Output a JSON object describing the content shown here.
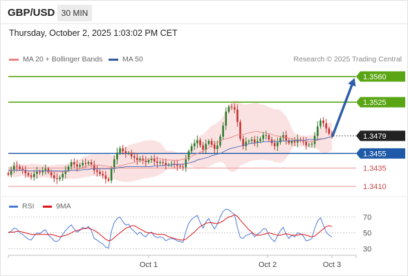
{
  "header": {
    "pair": "GBP/USD",
    "timeframe": "30 MIN"
  },
  "timestamp": "Thursday, October 2, 2025 1:03:02 PM CET",
  "legend": {
    "items": [
      {
        "label": "MA 20 + Bollinger Bands",
        "color": "#f08080"
      },
      {
        "label": "MA 50",
        "color": "#2e5a9c"
      }
    ],
    "copyright": "Research © 2025 Trading Central"
  },
  "rsi_legend": {
    "items": [
      {
        "label": "RSI",
        "color": "#4a78d8"
      },
      {
        "label": "9MA",
        "color": "#dd1111"
      }
    ]
  },
  "colors": {
    "resistance": "#5aa514",
    "support_blue": "#1f5aa8",
    "support_red": "#e88f8f",
    "last_price": "#222222",
    "bull": "#2a7a2a",
    "bear": "#c23030",
    "bands": "#fbe2e2",
    "ma20": "#e58e8e",
    "ma50": "#5572b8",
    "arrow": "#2e5ea8"
  },
  "chart_data": [
    {
      "type": "candlestick",
      "title": "",
      "instrument": "GBP/USD",
      "interval": "30 MIN",
      "ylim": [
        1.3396,
        1.3575
      ],
      "x_ticks": [
        "Oct 1",
        "Oct 2",
        "Oct 3"
      ],
      "levels": [
        {
          "value": 1.356,
          "label": "1.3560",
          "kind": "resistance",
          "color": "#5aa514"
        },
        {
          "value": 1.3525,
          "label": "1.3525",
          "kind": "resistance",
          "color": "#5aa514"
        },
        {
          "value": 1.3479,
          "label": "1.3479",
          "kind": "last",
          "color": "#222222"
        },
        {
          "value": 1.3455,
          "label": "1.3455",
          "kind": "support",
          "color": "#1f5aa8"
        },
        {
          "value": 1.3435,
          "label": "1.3435",
          "kind": "support-minor",
          "color": "#e88f8f"
        },
        {
          "value": 1.341,
          "label": "1.3410",
          "kind": "support-minor",
          "color": "#e88f8f"
        }
      ],
      "close": [
        1.3426,
        1.3433,
        1.3438,
        1.3437,
        1.3434,
        1.3432,
        1.3428,
        1.3425,
        1.3423,
        1.3427,
        1.343,
        1.3429,
        1.3432,
        1.3434,
        1.3429,
        1.3425,
        1.3421,
        1.342,
        1.3422,
        1.3427,
        1.3432,
        1.3437,
        1.3443,
        1.344,
        1.3437,
        1.3439,
        1.3442,
        1.3441,
        1.3443,
        1.344,
        1.3432,
        1.343,
        1.3427,
        1.3425,
        1.342,
        1.3418,
        1.3434,
        1.3447,
        1.3456,
        1.3462,
        1.3458,
        1.3455,
        1.3456,
        1.3451,
        1.3449,
        1.3446,
        1.3448,
        1.3445,
        1.3443,
        1.3446,
        1.3448,
        1.3444,
        1.3442,
        1.3443,
        1.3442,
        1.3439,
        1.344,
        1.3441,
        1.344,
        1.3438,
        1.3437,
        1.3436,
        1.3447,
        1.3458,
        1.3465,
        1.3469,
        1.3473,
        1.3466,
        1.346,
        1.3468,
        1.3472,
        1.3467,
        1.3461,
        1.3466,
        1.3478,
        1.3493,
        1.3512,
        1.3519,
        1.3518,
        1.3515,
        1.3498,
        1.3475,
        1.3465,
        1.3471,
        1.3472,
        1.3474,
        1.347,
        1.3472,
        1.3475,
        1.348,
        1.348,
        1.3474,
        1.3469,
        1.3465,
        1.347,
        1.3476,
        1.348,
        1.3473,
        1.3469,
        1.3472,
        1.347,
        1.3474,
        1.3473,
        1.3471,
        1.3466,
        1.3467,
        1.3468,
        1.3479,
        1.3492,
        1.35,
        1.3496,
        1.3489,
        1.3482,
        1.3479
      ],
      "ma20": [
        1.3431,
        1.3431,
        1.3432,
        1.3432,
        1.3432,
        1.3432,
        1.3432,
        1.3431,
        1.3431,
        1.3431,
        1.3431,
        1.3431,
        1.3431,
        1.3431,
        1.343,
        1.343,
        1.343,
        1.343,
        1.343,
        1.343,
        1.343,
        1.3431,
        1.3432,
        1.3432,
        1.3433,
        1.3434,
        1.3436,
        1.3437,
        1.3438,
        1.3439,
        1.3439,
        1.3439,
        1.3439,
        1.3438,
        1.3438,
        1.3437,
        1.3436,
        1.3436,
        1.3437,
        1.3438,
        1.3439,
        1.344,
        1.3441,
        1.3442,
        1.3443,
        1.3444,
        1.3445,
        1.3446,
        1.3447,
        1.3447,
        1.3448,
        1.3448,
        1.3448,
        1.3448,
        1.3447,
        1.3446,
        1.3446,
        1.3446,
        1.3445,
        1.3445,
        1.3446,
        1.3447,
        1.3448,
        1.3449,
        1.3451,
        1.3453,
        1.3455,
        1.3457,
        1.3458,
        1.346,
        1.3463,
        1.3466,
        1.3468,
        1.347,
        1.3472,
        1.3474,
        1.3475,
        1.3476,
        1.3477,
        1.3479,
        1.348,
        1.3481,
        1.3481,
        1.3482,
        1.3483,
        1.3484,
        1.3485,
        1.3485,
        1.3484,
        1.3484,
        1.3483,
        1.3482,
        1.3481,
        1.3479,
        1.3479,
        1.3478,
        1.3477,
        1.3477,
        1.3476,
        1.3475,
        1.3474,
        1.3473,
        1.3472,
        1.3472,
        1.3471,
        1.3471,
        1.3471,
        1.3472,
        1.3473,
        1.3474,
        1.3475,
        1.3476,
        1.3477,
        1.3478
      ],
      "ma50": [
        1.3432,
        1.3432,
        1.3432,
        1.3432,
        1.3432,
        1.3432,
        1.3432,
        1.3431,
        1.3431,
        1.3431,
        1.3431,
        1.3431,
        1.3431,
        1.3431,
        1.3431,
        1.3431,
        1.3431,
        1.3431,
        1.3431,
        1.3431,
        1.3431,
        1.3431,
        1.3432,
        1.3432,
        1.3432,
        1.3432,
        1.3433,
        1.3433,
        1.3433,
        1.3434,
        1.3434,
        1.3434,
        1.3434,
        1.3434,
        1.3434,
        1.3434,
        1.3434,
        1.3435,
        1.3435,
        1.3436,
        1.3436,
        1.3437,
        1.3437,
        1.3437,
        1.3437,
        1.3437,
        1.3437,
        1.3437,
        1.3437,
        1.3437,
        1.3437,
        1.3438,
        1.3438,
        1.3438,
        1.3438,
        1.3439,
        1.3439,
        1.3439,
        1.344,
        1.344,
        1.344,
        1.344,
        1.3441,
        1.3442,
        1.3443,
        1.3444,
        1.3446,
        1.3447,
        1.3448,
        1.3449,
        1.345,
        1.3452,
        1.3453,
        1.3454,
        1.3455,
        1.3457,
        1.3459,
        1.3461,
        1.3462,
        1.3463,
        1.3464,
        1.3465,
        1.3466,
        1.3467,
        1.3468,
        1.3469,
        1.3469,
        1.347,
        1.347,
        1.3471,
        1.3471,
        1.3471,
        1.3471,
        1.3471,
        1.3471,
        1.3472,
        1.3472,
        1.3472,
        1.3472,
        1.3472,
        1.3473,
        1.3473,
        1.3473,
        1.3473,
        1.3473,
        1.3474,
        1.3474,
        1.3474,
        1.3474,
        1.3475,
        1.3475,
        1.3476,
        1.3477,
        1.3478
      ],
      "forecast_arrow": {
        "from": 1.3479,
        "to": 1.356
      }
    },
    {
      "type": "line",
      "title": "",
      "ylim": [
        20,
        80
      ],
      "y_ticks": [
        70,
        50,
        30
      ],
      "x_ticks": [
        "Oct 1",
        "Oct 2",
        "Oct 3"
      ],
      "series": [
        {
          "name": "RSI",
          "color": "#4a78d8",
          "values": [
            50,
            52,
            56,
            55,
            50,
            48,
            45,
            42,
            41,
            46,
            50,
            49,
            52,
            54,
            47,
            44,
            40,
            39,
            42,
            48,
            53,
            57,
            60,
            55,
            51,
            53,
            57,
            55,
            58,
            53,
            43,
            41,
            38,
            36,
            32,
            31,
            52,
            63,
            68,
            70,
            64,
            60,
            61,
            55,
            52,
            48,
            51,
            47,
            45,
            49,
            51,
            46,
            44,
            45,
            44,
            40,
            42,
            43,
            42,
            40,
            39,
            38,
            52,
            62,
            67,
            70,
            72,
            63,
            56,
            64,
            68,
            61,
            55,
            61,
            70,
            77,
            80,
            79,
            76,
            73,
            57,
            44,
            43,
            47,
            48,
            50,
            45,
            48,
            51,
            55,
            55,
            47,
            42,
            39,
            46,
            53,
            57,
            48,
            43,
            47,
            45,
            50,
            49,
            46,
            40,
            41,
            43,
            56,
            65,
            69,
            60,
            51,
            47,
            45
          ]
        },
        {
          "name": "9MA",
          "color": "#dd1111",
          "values": [
            51,
            51,
            51,
            52,
            52,
            51,
            50,
            49,
            48,
            48,
            48,
            48,
            48,
            48,
            48,
            48,
            47,
            46,
            45,
            46,
            47,
            48,
            50,
            52,
            53,
            54,
            55,
            56,
            56,
            55,
            53,
            51,
            48,
            45,
            42,
            40,
            41,
            44,
            47,
            50,
            53,
            56,
            57,
            59,
            59,
            57,
            55,
            53,
            51,
            50,
            50,
            49,
            48,
            48,
            48,
            47,
            45,
            44,
            43,
            42,
            41,
            41,
            42,
            45,
            48,
            51,
            55,
            58,
            60,
            62,
            63,
            63,
            62,
            62,
            63,
            65,
            68,
            70,
            71,
            73,
            71,
            66,
            62,
            58,
            54,
            51,
            48,
            47,
            47,
            48,
            49,
            50,
            49,
            48,
            47,
            47,
            48,
            49,
            48,
            47,
            47,
            47,
            48,
            48,
            47,
            46,
            45,
            46,
            49,
            52,
            55,
            58,
            59,
            58
          ]
        }
      ]
    }
  ]
}
